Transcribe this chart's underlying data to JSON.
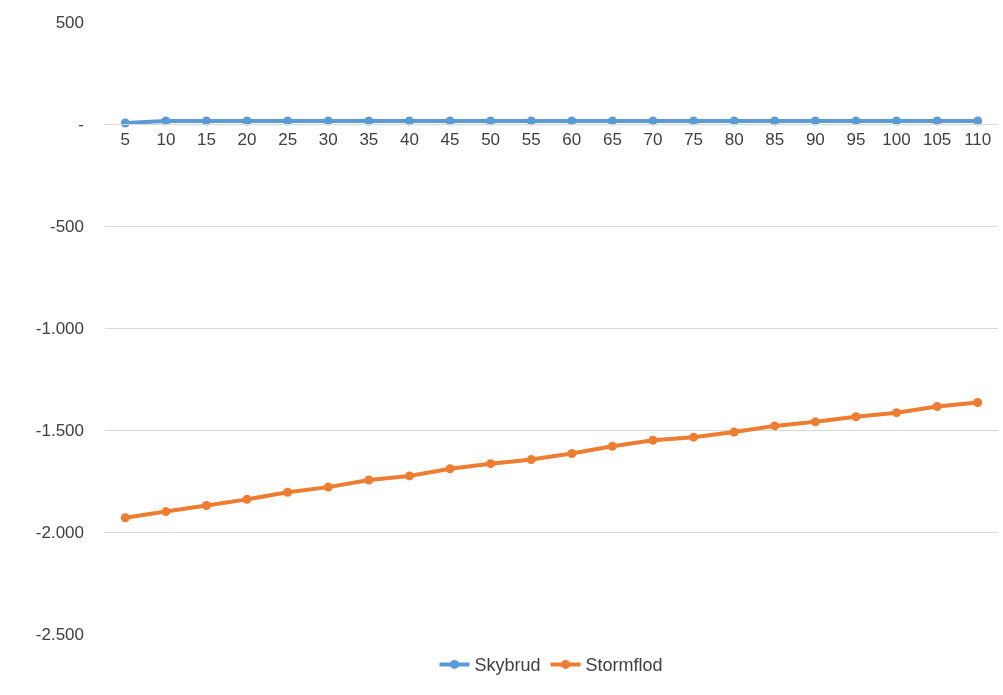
{
  "chart_data": {
    "type": "line",
    "categories": [
      "5",
      "10",
      "15",
      "20",
      "25",
      "30",
      "35",
      "40",
      "45",
      "50",
      "55",
      "60",
      "65",
      "70",
      "75",
      "80",
      "85",
      "90",
      "95",
      "100",
      "105",
      "110"
    ],
    "series": [
      {
        "name": "Skybrud",
        "color": "#5b9bd5",
        "values": [
          5,
          15,
          15,
          15,
          15,
          15,
          15,
          15,
          15,
          15,
          15,
          15,
          15,
          15,
          15,
          15,
          15,
          15,
          15,
          15,
          15,
          15
        ]
      },
      {
        "name": "Stormflod",
        "color": "#ed7d31",
        "values": [
          -1930,
          -1900,
          -1870,
          -1840,
          -1805,
          -1780,
          -1745,
          -1725,
          -1690,
          -1665,
          -1645,
          -1615,
          -1580,
          -1550,
          -1535,
          -1510,
          -1480,
          -1460,
          -1435,
          -1415,
          -1385,
          -1365
        ]
      }
    ],
    "ylim": [
      -2500,
      500
    ],
    "yticks": [
      500,
      {
        "value": 0,
        "label": "-"
      },
      {
        "value": -500,
        "label": "-500"
      },
      {
        "value": -1000,
        "label": "-1.000"
      },
      {
        "value": -1500,
        "label": "-1.500"
      },
      {
        "value": -2000,
        "label": "-2.000"
      },
      {
        "value": -2500,
        "label": "-2.500"
      }
    ],
    "grid": "y",
    "legend": "bottom",
    "marker": "circle",
    "line_style": "solid"
  }
}
